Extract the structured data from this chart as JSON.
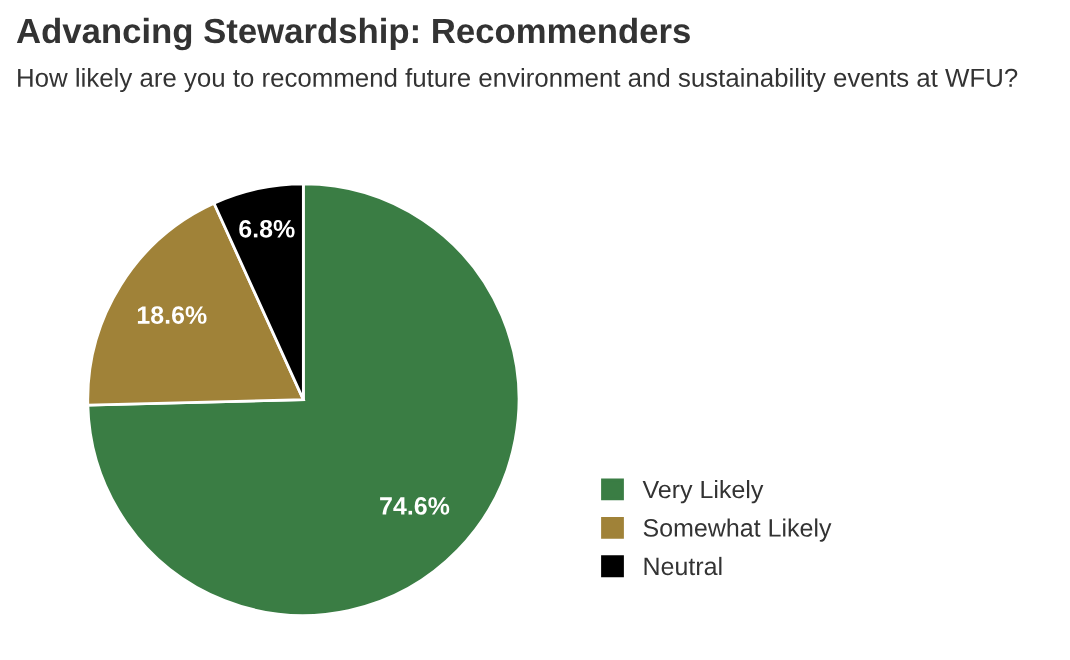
{
  "chart_data": {
    "type": "pie",
    "title": "Advancing Stewardship: Recommenders",
    "subtitle": "How likely are you to recommend future environment and sustainability events at WFU?",
    "categories": [
      "Very Likely",
      "Somewhat Likely",
      "Neutral"
    ],
    "values": [
      74.6,
      18.6,
      6.8
    ],
    "colors": [
      "#3a7d44",
      "#a08238",
      "#000000"
    ],
    "value_labels": [
      "74.6%",
      "18.6%",
      "6.8%"
    ],
    "legend": "right"
  }
}
